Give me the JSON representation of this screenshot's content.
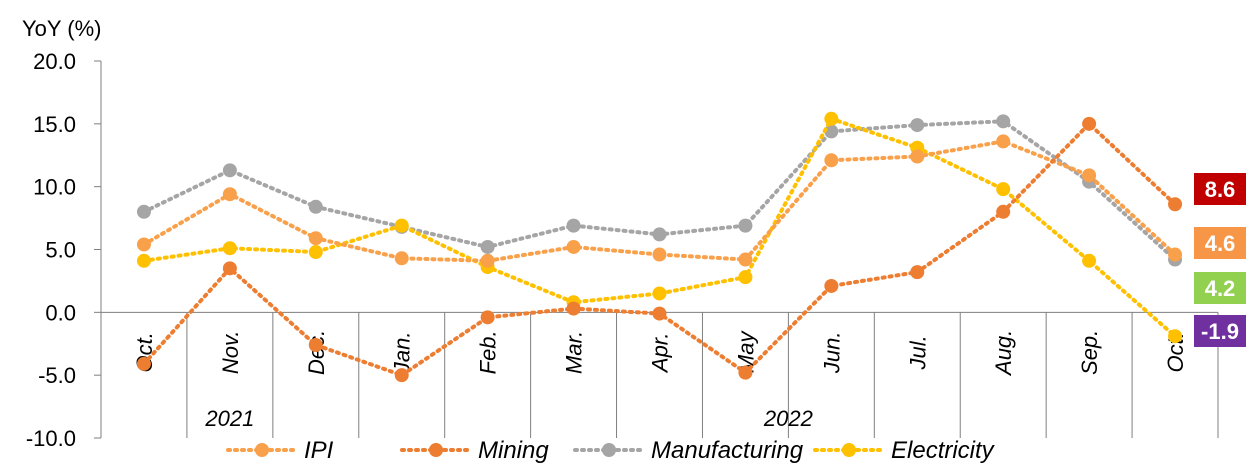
{
  "chart_data": {
    "type": "line",
    "ylabel": "YoY (%)",
    "ylim": [
      -10,
      20
    ],
    "yticks": [
      "20.0",
      "15.0",
      "10.0",
      "5.0",
      "0.0",
      "-5.0",
      "-10.0"
    ],
    "categories": [
      "Oct.",
      "Nov.",
      "Dec.",
      "Jan.",
      "Feb.",
      "Mar.",
      "Apr.",
      "May",
      "Jun.",
      "Jul.",
      "Aug.",
      "Sep.",
      "Oct."
    ],
    "year_groups": [
      {
        "label": "2021",
        "span": 3
      },
      {
        "label": "2022",
        "span": 10
      }
    ],
    "grid": false,
    "legend_position": "bottom",
    "series": [
      {
        "name": "IPI",
        "color": "#F9A04B",
        "values": [
          5.4,
          9.4,
          5.9,
          4.3,
          4.1,
          5.2,
          4.6,
          4.2,
          12.1,
          12.4,
          13.6,
          10.9,
          4.6
        ]
      },
      {
        "name": "Mining",
        "color": "#ED7D31",
        "values": [
          -4.1,
          3.5,
          -2.6,
          -5.0,
          -0.4,
          0.3,
          -0.1,
          -4.8,
          2.1,
          3.2,
          8.0,
          15.0,
          8.6
        ]
      },
      {
        "name": "Manufacturing",
        "color": "#A5A5A5",
        "values": [
          8.0,
          11.3,
          8.4,
          6.8,
          5.2,
          6.9,
          6.2,
          6.9,
          14.4,
          14.9,
          15.2,
          10.4,
          4.2
        ]
      },
      {
        "name": "Electricity",
        "color": "#FFC000",
        "values": [
          4.1,
          5.1,
          4.8,
          6.9,
          3.6,
          0.8,
          1.5,
          2.8,
          15.4,
          13.1,
          9.8,
          4.1,
          -1.9
        ]
      }
    ],
    "end_labels": [
      {
        "text": "8.6",
        "value": 8.6,
        "bg": "#C00000"
      },
      {
        "text": "4.6",
        "value": 4.6,
        "bg": "#F79646"
      },
      {
        "text": "4.2",
        "value": 4.2,
        "bg": "#92D050"
      },
      {
        "text": "-1.9",
        "value": -1.9,
        "bg": "#7030A0"
      }
    ]
  }
}
